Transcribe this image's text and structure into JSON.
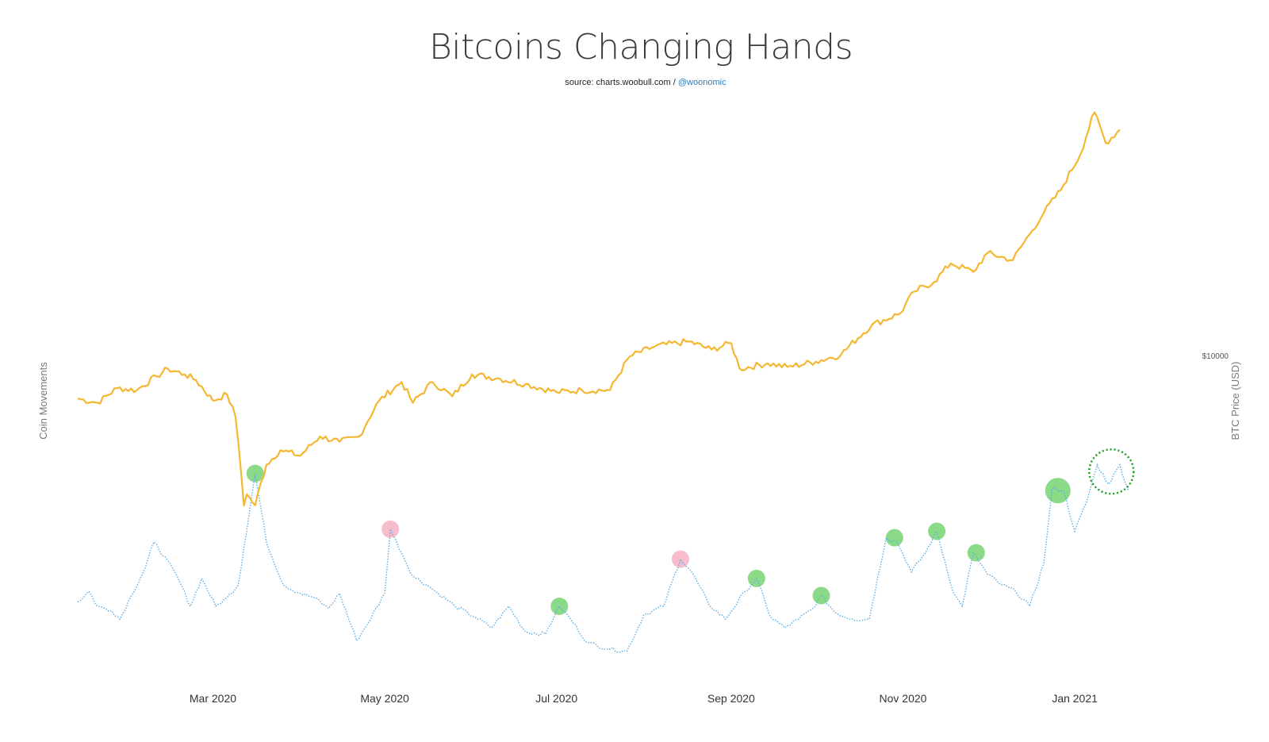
{
  "title": "Bitcoins Changing Hands",
  "subtitle": {
    "source_label": "source: charts.woobull.com / ",
    "handle": "@woonomic"
  },
  "chart_data": {
    "type": "line",
    "title": "Bitcoins Changing Hands",
    "y_left_label": "Coin Movements",
    "y_right_label": "BTC Price (USD)",
    "y_right_reference": "$10000",
    "y_right_scale": "log",
    "grid": false,
    "x_ticks": [
      {
        "date": "2020-03-01",
        "label": "Mar 2020"
      },
      {
        "date": "2020-05-01",
        "label": "May 2020"
      },
      {
        "date": "2020-07-01",
        "label": "Jul 2020"
      },
      {
        "date": "2020-09-01",
        "label": "Sep 2020"
      },
      {
        "date": "2020-11-01",
        "label": "Nov 2020"
      },
      {
        "date": "2021-01-01",
        "label": "Jan 2021"
      }
    ],
    "x_range": [
      "2020-01-13",
      "2021-01-28"
    ],
    "colors": {
      "price": "#f5b731",
      "movements": "#5aaee8",
      "green_marker": "#7ed67a",
      "pink_marker": "#f7b6c8",
      "highlight_circle": "#1e9e1e"
    },
    "series": [
      {
        "name": "BTC Price (USD)",
        "axis": "right",
        "points": [
          [
            "2020-01-13",
            8800
          ],
          [
            "2020-01-20",
            8600
          ],
          [
            "2020-01-27",
            9300
          ],
          [
            "2020-02-03",
            9200
          ],
          [
            "2020-02-10",
            9900
          ],
          [
            "2020-02-14",
            10300
          ],
          [
            "2020-02-20",
            10000
          ],
          [
            "2020-02-24",
            9700
          ],
          [
            "2020-03-01",
            8700
          ],
          [
            "2020-03-06",
            9000
          ],
          [
            "2020-03-09",
            8000
          ],
          [
            "2020-03-12",
            5000
          ],
          [
            "2020-03-13",
            5300
          ],
          [
            "2020-03-16",
            5000
          ],
          [
            "2020-03-20",
            6200
          ],
          [
            "2020-03-25",
            6700
          ],
          [
            "2020-04-01",
            6500
          ],
          [
            "2020-04-08",
            7200
          ],
          [
            "2020-04-15",
            7000
          ],
          [
            "2020-04-22",
            7200
          ],
          [
            "2020-04-29",
            8700
          ],
          [
            "2020-05-07",
            9600
          ],
          [
            "2020-05-11",
            8600
          ],
          [
            "2020-05-18",
            9600
          ],
          [
            "2020-05-25",
            8900
          ],
          [
            "2020-06-01",
            10000
          ],
          [
            "2020-06-10",
            9800
          ],
          [
            "2020-06-20",
            9500
          ],
          [
            "2020-07-01",
            9100
          ],
          [
            "2020-07-10",
            9200
          ],
          [
            "2020-07-20",
            9200
          ],
          [
            "2020-07-27",
            11000
          ],
          [
            "2020-08-05",
            11600
          ],
          [
            "2020-08-17",
            11900
          ],
          [
            "2020-08-25",
            11400
          ],
          [
            "2020-09-01",
            11800
          ],
          [
            "2020-09-04",
            10300
          ],
          [
            "2020-09-14",
            10600
          ],
          [
            "2020-09-21",
            10400
          ],
          [
            "2020-10-01",
            10700
          ],
          [
            "2020-10-10",
            11100
          ],
          [
            "2020-10-21",
            13000
          ],
          [
            "2020-10-31",
            13800
          ],
          [
            "2020-11-05",
            15500
          ],
          [
            "2020-11-12",
            16300
          ],
          [
            "2020-11-18",
            18000
          ],
          [
            "2020-11-26",
            17200
          ],
          [
            "2020-12-01",
            19000
          ],
          [
            "2020-12-10",
            18300
          ],
          [
            "2020-12-16",
            21000
          ],
          [
            "2020-12-21",
            23500
          ],
          [
            "2020-12-27",
            26500
          ],
          [
            "2021-01-03",
            32000
          ],
          [
            "2021-01-08",
            40000
          ],
          [
            "2021-01-12",
            34000
          ],
          [
            "2021-01-17",
            36500
          ]
        ]
      },
      {
        "name": "Coin Movements",
        "axis": "left",
        "points": [
          [
            "2020-01-13",
            0.32
          ],
          [
            "2020-01-17",
            0.37
          ],
          [
            "2020-01-20",
            0.3
          ],
          [
            "2020-01-25",
            0.28
          ],
          [
            "2020-01-28",
            0.24
          ],
          [
            "2020-02-01",
            0.35
          ],
          [
            "2020-02-06",
            0.48
          ],
          [
            "2020-02-09",
            0.6
          ],
          [
            "2020-02-13",
            0.53
          ],
          [
            "2020-02-18",
            0.42
          ],
          [
            "2020-02-22",
            0.3
          ],
          [
            "2020-02-26",
            0.43
          ],
          [
            "2020-03-02",
            0.3
          ],
          [
            "2020-03-06",
            0.34
          ],
          [
            "2020-03-10",
            0.4
          ],
          [
            "2020-03-16",
            0.92
          ],
          [
            "2020-03-20",
            0.6
          ],
          [
            "2020-03-26",
            0.4
          ],
          [
            "2020-04-01",
            0.36
          ],
          [
            "2020-04-06",
            0.34
          ],
          [
            "2020-04-11",
            0.29
          ],
          [
            "2020-04-15",
            0.36
          ],
          [
            "2020-04-21",
            0.14
          ],
          [
            "2020-04-25",
            0.22
          ],
          [
            "2020-05-01",
            0.36
          ],
          [
            "2020-05-03",
            0.66
          ],
          [
            "2020-05-07",
            0.55
          ],
          [
            "2020-05-11",
            0.44
          ],
          [
            "2020-05-16",
            0.4
          ],
          [
            "2020-05-20",
            0.36
          ],
          [
            "2020-05-26",
            0.3
          ],
          [
            "2020-06-02",
            0.25
          ],
          [
            "2020-06-08",
            0.2
          ],
          [
            "2020-06-14",
            0.3
          ],
          [
            "2020-06-20",
            0.18
          ],
          [
            "2020-06-27",
            0.17
          ],
          [
            "2020-07-02",
            0.3
          ],
          [
            "2020-07-06",
            0.24
          ],
          [
            "2020-07-12",
            0.13
          ],
          [
            "2020-07-20",
            0.1
          ],
          [
            "2020-07-26",
            0.09
          ],
          [
            "2020-08-01",
            0.26
          ],
          [
            "2020-08-08",
            0.3
          ],
          [
            "2020-08-14",
            0.52
          ],
          [
            "2020-08-18",
            0.46
          ],
          [
            "2020-08-24",
            0.31
          ],
          [
            "2020-08-30",
            0.24
          ],
          [
            "2020-09-06",
            0.37
          ],
          [
            "2020-09-10",
            0.43
          ],
          [
            "2020-09-15",
            0.25
          ],
          [
            "2020-09-20",
            0.2
          ],
          [
            "2020-09-25",
            0.24
          ],
          [
            "2020-09-30",
            0.29
          ],
          [
            "2020-10-03",
            0.35
          ],
          [
            "2020-10-08",
            0.27
          ],
          [
            "2020-10-14",
            0.24
          ],
          [
            "2020-10-20",
            0.24
          ],
          [
            "2020-10-26",
            0.62
          ],
          [
            "2020-10-30",
            0.6
          ],
          [
            "2020-11-04",
            0.46
          ],
          [
            "2020-11-09",
            0.55
          ],
          [
            "2020-11-13",
            0.65
          ],
          [
            "2020-11-19",
            0.36
          ],
          [
            "2020-11-22",
            0.3
          ],
          [
            "2020-11-26",
            0.55
          ],
          [
            "2020-12-01",
            0.45
          ],
          [
            "2020-12-06",
            0.4
          ],
          [
            "2020-12-11",
            0.37
          ],
          [
            "2020-12-16",
            0.3
          ],
          [
            "2020-12-21",
            0.5
          ],
          [
            "2020-12-24",
            0.85
          ],
          [
            "2020-12-28",
            0.84
          ],
          [
            "2021-01-01",
            0.65
          ],
          [
            "2021-01-05",
            0.78
          ],
          [
            "2021-01-09",
            0.96
          ],
          [
            "2021-01-13",
            0.87
          ],
          [
            "2021-01-17",
            0.96
          ],
          [
            "2021-01-20",
            0.84
          ]
        ]
      }
    ],
    "markers": [
      {
        "date": "2020-03-16",
        "value": 0.92,
        "color": "green",
        "size": "medium"
      },
      {
        "date": "2020-05-03",
        "value": 0.66,
        "color": "pink",
        "size": "medium"
      },
      {
        "date": "2020-07-02",
        "value": 0.3,
        "color": "green",
        "size": "medium"
      },
      {
        "date": "2020-08-14",
        "value": 0.52,
        "color": "pink",
        "size": "medium"
      },
      {
        "date": "2020-09-10",
        "value": 0.43,
        "color": "green",
        "size": "medium"
      },
      {
        "date": "2020-10-03",
        "value": 0.35,
        "color": "green",
        "size": "medium"
      },
      {
        "date": "2020-10-29",
        "value": 0.62,
        "color": "green",
        "size": "medium"
      },
      {
        "date": "2020-11-13",
        "value": 0.65,
        "color": "green",
        "size": "medium"
      },
      {
        "date": "2020-11-27",
        "value": 0.55,
        "color": "green",
        "size": "medium"
      },
      {
        "date": "2020-12-26",
        "value": 0.84,
        "color": "green",
        "size": "large"
      }
    ],
    "highlight": {
      "date": "2021-01-14",
      "value": 0.94,
      "style": "dotted-circle"
    }
  }
}
